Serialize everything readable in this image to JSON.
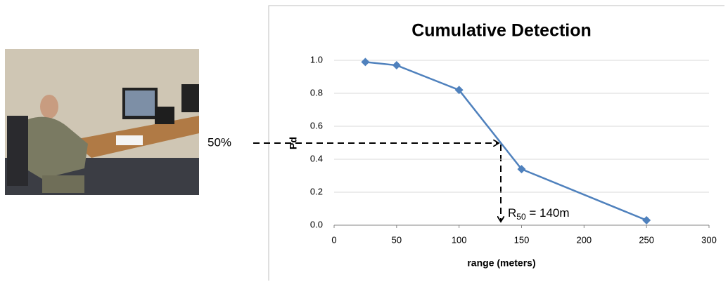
{
  "chart_data": {
    "type": "line",
    "title": "Cumulative Detection",
    "x_label": "range (meters)",
    "y_label": "Pd",
    "x": [
      25,
      50,
      100,
      150,
      250
    ],
    "values": [
      0.99,
      0.97,
      0.82,
      0.34,
      0.03
    ],
    "color": "#4f81bd",
    "xlim": [
      0,
      300
    ],
    "xticks": [
      0,
      50,
      100,
      150,
      200,
      250,
      300
    ],
    "ylim": [
      0,
      1
    ],
    "yticks": [
      {
        "value": 0,
        "label": "0.0"
      },
      0.2,
      0.4,
      0.6,
      0.8,
      {
        "value": 1,
        "label": "1.0"
      }
    ],
    "grid": true,
    "annotations": {
      "threshold": "50%",
      "r50": {
        "base": "R",
        "sub": "50",
        "rest": " = 140m"
      }
    }
  }
}
